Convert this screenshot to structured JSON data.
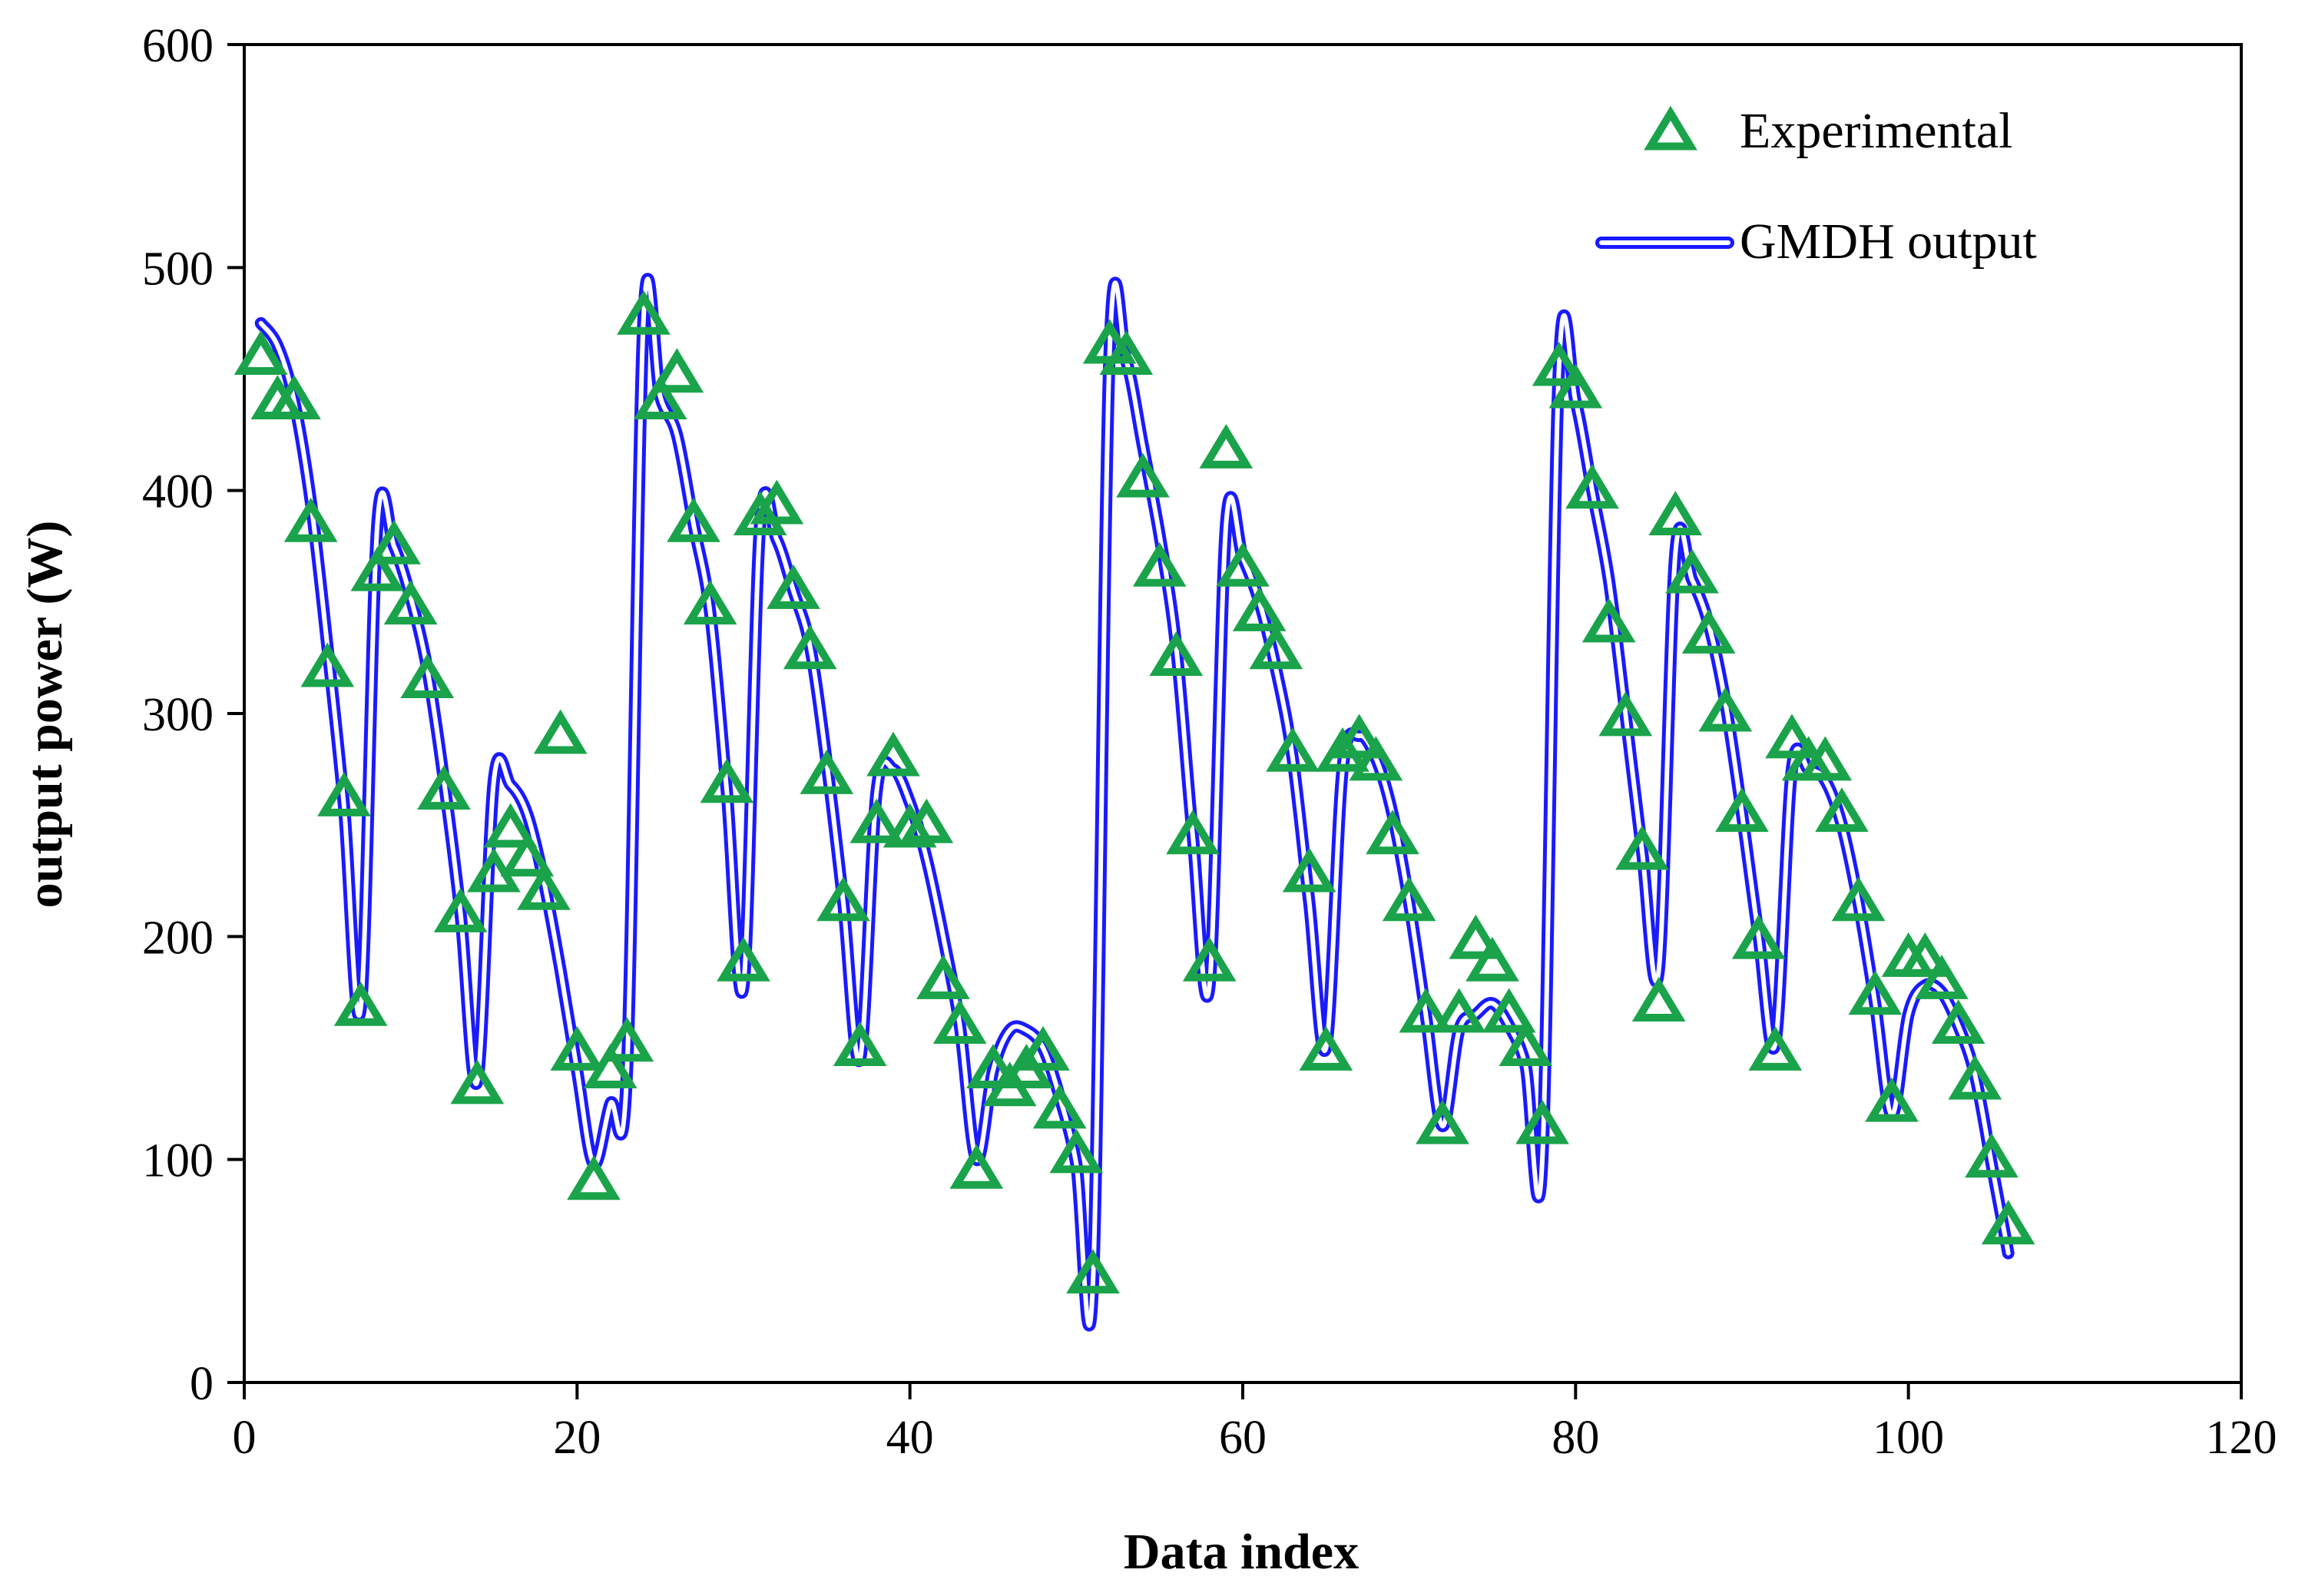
{
  "chart_data": {
    "type": "line",
    "title": "",
    "xlabel": "Data index",
    "ylabel": "output power (W)",
    "xlim": [
      0,
      120
    ],
    "ylim": [
      0,
      600
    ],
    "xticks": [
      "0",
      "20",
      "40",
      "60",
      "80",
      "100",
      "120"
    ],
    "yticks": [
      "0",
      "100",
      "200",
      "300",
      "400",
      "500",
      "600"
    ],
    "grid": false,
    "legend_position": "top-right",
    "colors": {
      "experimental": "#1aa34a",
      "gmdh": "#1a1aff"
    },
    "series": [
      {
        "name": "Experimental",
        "style": "triangle-markers",
        "x": [
          1,
          2,
          3,
          4,
          5,
          6,
          7,
          8,
          9,
          10,
          11,
          12,
          13,
          14,
          15,
          16,
          17,
          18,
          19,
          20,
          21,
          22,
          23,
          24,
          25,
          26,
          27,
          28,
          29,
          30,
          31,
          32,
          33,
          34,
          35,
          36,
          37,
          38,
          39,
          40,
          41,
          42,
          43,
          44,
          45,
          46,
          47,
          48,
          49,
          50,
          51,
          52,
          53,
          54,
          55,
          56,
          57,
          58,
          59,
          60,
          61,
          62,
          63,
          64,
          65,
          66,
          67,
          68,
          69,
          70,
          71,
          72,
          73,
          74,
          75,
          76,
          77,
          78,
          79,
          80,
          81,
          82,
          83,
          84,
          85,
          86,
          87,
          88,
          89,
          90,
          91,
          92,
          93,
          94,
          95,
          96,
          97,
          98,
          99,
          100,
          101,
          102,
          103,
          104,
          105,
          106
        ],
        "y": [
          460,
          440,
          440,
          385,
          320,
          262,
          168,
          363,
          375,
          348,
          315,
          265,
          210,
          133,
          228,
          248,
          235,
          220,
          290,
          148,
          90,
          140,
          152,
          478,
          440,
          452,
          385,
          348,
          268,
          188,
          388,
          393,
          355,
          328,
          272,
          215,
          150,
          250,
          280,
          248,
          250,
          180,
          160,
          95,
          140,
          132,
          140,
          148,
          122,
          102,
          48,
          465,
          460,
          405,
          365,
          325,
          245,
          188,
          418,
          365,
          345,
          328,
          282,
          228,
          148,
          282,
          288,
          278,
          245,
          215,
          165,
          115,
          165,
          198,
          188,
          165,
          150,
          115,
          455,
          445,
          400,
          340,
          298,
          238,
          170,
          388,
          362,
          335,
          300,
          255,
          198,
          148,
          288,
          278,
          278,
          255,
          215,
          173,
          125,
          190,
          190,
          180,
          160,
          135,
          100,
          70
        ]
      },
      {
        "name": "GMDH output",
        "style": "double-line",
        "x": [
          1,
          2,
          3,
          4,
          5,
          6,
          7,
          8,
          9,
          10,
          11,
          12,
          13,
          14,
          15,
          16,
          17,
          18,
          19,
          20,
          21,
          22,
          23,
          24,
          25,
          26,
          27,
          28,
          29,
          30,
          31,
          32,
          33,
          34,
          35,
          36,
          37,
          38,
          39,
          40,
          41,
          42,
          43,
          44,
          45,
          46,
          47,
          48,
          49,
          50,
          51,
          52,
          53,
          54,
          55,
          56,
          57,
          58,
          59,
          60,
          61,
          62,
          63,
          64,
          65,
          66,
          67,
          68,
          69,
          70,
          71,
          72,
          73,
          74,
          75,
          76,
          77,
          78,
          79,
          80,
          81,
          82,
          83,
          84,
          85,
          86,
          87,
          88,
          89,
          90,
          91,
          92,
          93,
          94,
          95,
          96,
          97,
          98,
          99,
          100,
          101,
          102,
          103,
          104,
          105,
          106
        ],
        "y": [
          475,
          465,
          440,
          395,
          330,
          258,
          168,
          385,
          375,
          352,
          320,
          270,
          210,
          135,
          270,
          268,
          255,
          225,
          185,
          140,
          98,
          125,
          140,
          478,
          442,
          425,
          385,
          345,
          265,
          178,
          385,
          378,
          355,
          330,
          278,
          215,
          145,
          265,
          275,
          260,
          235,
          200,
          160,
          100,
          140,
          158,
          158,
          150,
          128,
          98,
          45,
          462,
          458,
          420,
          380,
          330,
          245,
          178,
          385,
          370,
          350,
          320,
          280,
          215,
          150,
          275,
          290,
          280,
          255,
          215,
          165,
          115,
          158,
          165,
          170,
          160,
          142,
          100,
          455,
          440,
          400,
          360,
          300,
          238,
          185,
          372,
          360,
          340,
          305,
          255,
          200,
          152,
          275,
          275,
          270,
          250,
          215,
          170,
          120,
          165,
          178,
          175,
          160,
          138,
          98,
          58
        ]
      }
    ]
  }
}
